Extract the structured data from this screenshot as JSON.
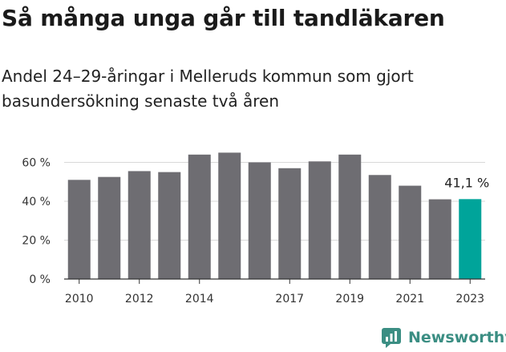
{
  "title": "Så många unga går till tandläkaren",
  "subtitle": "Andel 24–29-åringar i Melleruds kommun som gjort basundersökning senaste två åren",
  "brand": "Newsworthy",
  "colors": {
    "bar": "#6e6d72",
    "highlight": "#00a49a",
    "grid": "#d9d9d9",
    "brand": "#3b8e83"
  },
  "chart_data": {
    "type": "bar",
    "categories": [
      "2010",
      "2011",
      "2012",
      "2013",
      "2014",
      "2015",
      "2016",
      "2017",
      "2018",
      "2019",
      "2020",
      "2021",
      "2022",
      "2023"
    ],
    "values": [
      51,
      52.5,
      55.5,
      55,
      64,
      65,
      60,
      57,
      60.5,
      64,
      53.5,
      48,
      41,
      41.1
    ],
    "highlight_index": 13,
    "value_label": "41,1 %",
    "yticks": [
      "0 %",
      "20 %",
      "40 %",
      "60 %"
    ],
    "xtick_labels": [
      "2010",
      "2012",
      "2014",
      "2017",
      "2019",
      "2021",
      "2023"
    ],
    "ylim": [
      0,
      70
    ],
    "grid": true
  }
}
